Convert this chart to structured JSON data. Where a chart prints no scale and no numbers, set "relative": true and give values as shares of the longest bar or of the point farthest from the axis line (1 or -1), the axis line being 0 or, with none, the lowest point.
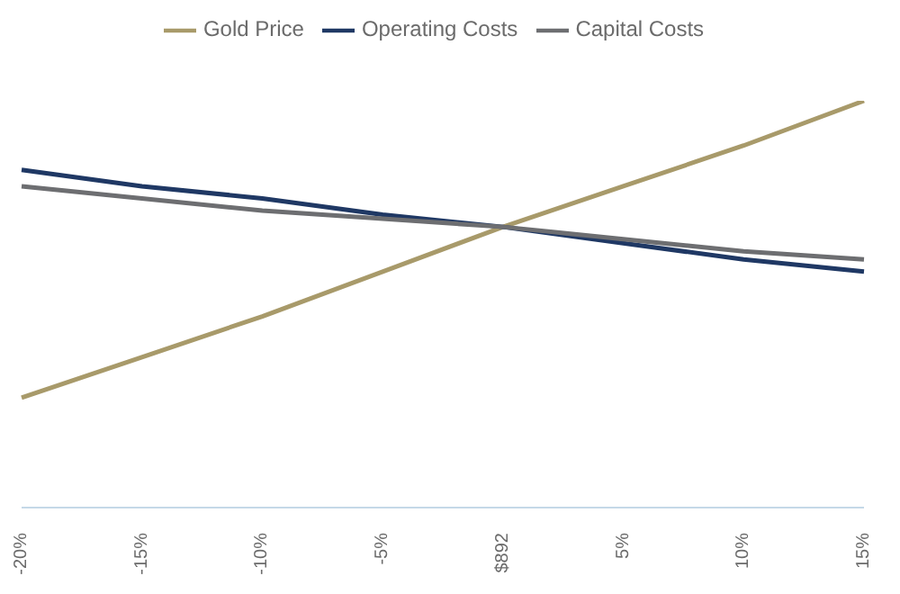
{
  "chart_data": {
    "type": "line",
    "relative": true,
    "categories": [
      "-20%",
      "-15%",
      "-10%",
      "-5%",
      "$892",
      "5%",
      "10%",
      "15%"
    ],
    "series": [
      {
        "name": "Gold Price",
        "color": "#a89a6a",
        "values": [
          0.27,
          0.37,
          0.47,
          0.58,
          0.69,
          0.79,
          0.89,
          1
        ]
      },
      {
        "name": "Operating Costs",
        "color": "#1f3864",
        "values": [
          0.83,
          0.79,
          0.76,
          0.72,
          0.69,
          0.65,
          0.61,
          0.58
        ]
      },
      {
        "name": "Capital Costs",
        "color": "#6d6e71",
        "values": [
          0.79,
          0.76,
          0.73,
          0.71,
          0.69,
          0.66,
          0.63,
          0.61
        ]
      }
    ],
    "legend": "top",
    "grid": false,
    "marker": "none",
    "line_style": "solid"
  }
}
